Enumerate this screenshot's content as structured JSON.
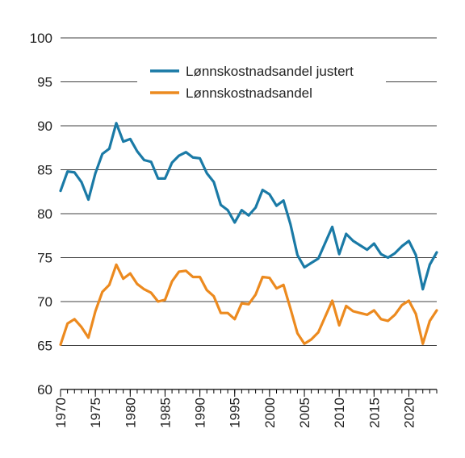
{
  "chart_data": {
    "type": "line",
    "title": "",
    "xlabel": "",
    "ylabel": "",
    "xlim": [
      1970,
      2024
    ],
    "ylim": [
      60,
      100
    ],
    "yticks": [
      60,
      65,
      70,
      75,
      80,
      85,
      90,
      95,
      100
    ],
    "xticks": [
      1970,
      1975,
      1980,
      1985,
      1990,
      1995,
      2000,
      2005,
      2010,
      2015,
      2020
    ],
    "grid": "horizontal",
    "legend_position": "top-right",
    "x": [
      1970,
      1971,
      1972,
      1973,
      1974,
      1975,
      1976,
      1977,
      1978,
      1979,
      1980,
      1981,
      1982,
      1983,
      1984,
      1985,
      1986,
      1987,
      1988,
      1989,
      1990,
      1991,
      1992,
      1993,
      1994,
      1995,
      1996,
      1997,
      1998,
      1999,
      2000,
      2001,
      2002,
      2003,
      2004,
      2005,
      2006,
      2007,
      2008,
      2009,
      2010,
      2011,
      2012,
      2013,
      2014,
      2015,
      2016,
      2017,
      2018,
      2019,
      2020,
      2021,
      2022,
      2023,
      2024
    ],
    "series": [
      {
        "name": "Lønnskostnadsandel justert",
        "color": "#1a7aa6",
        "values": [
          82.6,
          84.8,
          84.7,
          83.6,
          81.6,
          84.6,
          86.8,
          87.4,
          90.3,
          88.2,
          88.5,
          87.1,
          86.1,
          85.9,
          84.0,
          84.0,
          85.8,
          86.6,
          87.0,
          86.4,
          86.3,
          84.6,
          83.6,
          81.0,
          80.4,
          79.0,
          80.4,
          79.8,
          80.7,
          82.7,
          82.2,
          80.9,
          81.5,
          78.8,
          75.3,
          73.9,
          74.4,
          74.9,
          76.7,
          78.5,
          75.4,
          77.7,
          76.9,
          76.4,
          75.9,
          76.6,
          75.4,
          75.0,
          75.5,
          76.3,
          76.9,
          75.3,
          71.4,
          74.2,
          75.6
        ]
      },
      {
        "name": "Lønnskostnadsandel",
        "color": "#ec8a1f",
        "values": [
          65.1,
          67.5,
          68.0,
          67.1,
          65.9,
          68.9,
          71.1,
          71.9,
          74.2,
          72.6,
          73.2,
          72.0,
          71.4,
          71.0,
          70.0,
          70.2,
          72.3,
          73.4,
          73.5,
          72.8,
          72.8,
          71.3,
          70.6,
          68.7,
          68.7,
          68.0,
          69.8,
          69.7,
          70.8,
          72.8,
          72.7,
          71.5,
          71.9,
          69.2,
          66.4,
          65.2,
          65.7,
          66.5,
          68.3,
          70.1,
          67.3,
          69.5,
          68.9,
          68.7,
          68.5,
          69.0,
          68.0,
          67.8,
          68.5,
          69.6,
          70.1,
          68.6,
          65.2,
          67.8,
          69.0
        ]
      }
    ]
  }
}
